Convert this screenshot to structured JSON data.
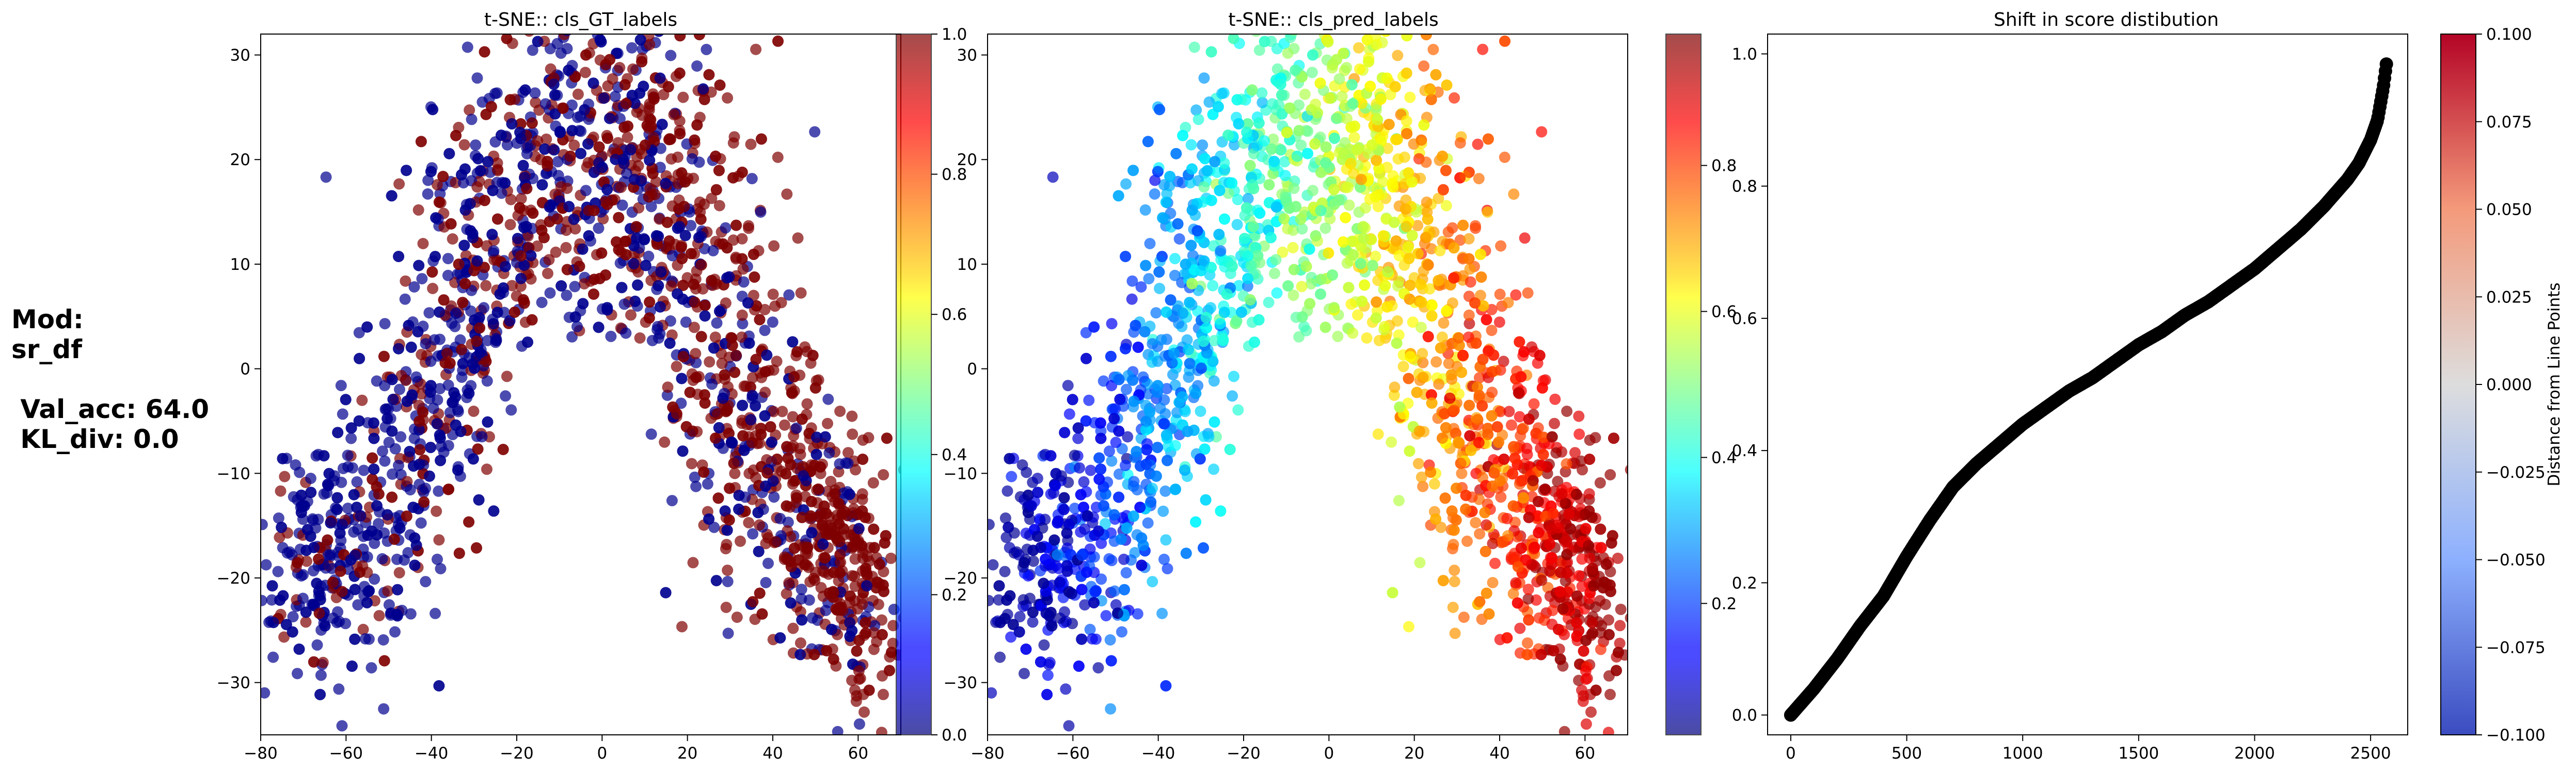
{
  "annotation": {
    "model_label": "Mod:",
    "model_name": "sr_df",
    "val_acc": "Val_acc: 64.0",
    "kl_div": "KL_div: 0.0"
  },
  "chart_data": [
    {
      "type": "scatter",
      "title": "t-SNE:: cls_GT_labels",
      "xlabel": "",
      "ylabel": "",
      "xlim": [
        -80,
        70
      ],
      "ylim": [
        -35,
        32
      ],
      "xticks": [
        "−80",
        "−60",
        "−40",
        "−20",
        "0",
        "20",
        "40",
        "60"
      ],
      "yticks": [
        "−30",
        "−20",
        "−10",
        "0",
        "10",
        "20",
        "30"
      ],
      "colormap": "jet",
      "alpha": 0.7,
      "colorbar": {
        "range": [
          0,
          1
        ],
        "ticks": [
          "0.0",
          "0.2",
          "0.4",
          "0.6",
          "0.8",
          "1.0"
        ]
      },
      "color_values": "binary ground-truth labels (0 = blue, 1 = dark red), mixed throughout the arch-shaped cloud",
      "approx_point_count": 2600
    },
    {
      "type": "scatter",
      "title": "t-SNE:: cls_pred_labels",
      "xlabel": "",
      "ylabel": "",
      "xlim": [
        -80,
        70
      ],
      "ylim": [
        -35,
        32
      ],
      "xticks": [
        "−80",
        "−60",
        "−40",
        "−20",
        "0",
        "20",
        "40",
        "60"
      ],
      "yticks": [
        "−30",
        "−20",
        "−10",
        "0",
        "10",
        "20",
        "30"
      ],
      "colormap": "jet",
      "alpha": 0.7,
      "colorbar": {
        "range": [
          0.02,
          0.98
        ],
        "ticks": [
          "0.2",
          "0.4",
          "0.6",
          "0.8"
        ]
      },
      "color_values": "predicted score rising smoothly from ~0.02 at x≈-75 to ~0.98 at x≈65",
      "approx_point_count": 2600
    },
    {
      "type": "scatter",
      "title": "Shift in score distibution",
      "xlabel": "",
      "ylabel": "",
      "xlim": [
        -100,
        2660
      ],
      "ylim": [
        -0.03,
        1.03
      ],
      "xticks": [
        "0",
        "500",
        "1000",
        "1500",
        "2000",
        "2500"
      ],
      "yticks": [
        "0.0",
        "0.2",
        "0.4",
        "0.6",
        "0.8",
        "1.0"
      ],
      "colormap": "coolwarm",
      "colorbar": {
        "label": "Distance from Line Points",
        "range": [
          -0.1,
          0.1
        ],
        "ticks": [
          "−0.100",
          "−0.075",
          "−0.050",
          "−0.025",
          "0.000",
          "0.025",
          "0.050",
          "0.075",
          "0.100"
        ]
      },
      "series": [
        {
          "x": [
            0,
            100,
            200,
            300,
            400,
            500,
            600,
            700,
            800,
            900,
            1000,
            1100,
            1200,
            1300,
            1400,
            1500,
            1600,
            1700,
            1800,
            1900,
            2000,
            2100,
            2200,
            2300,
            2400,
            2450,
            2500,
            2530,
            2555,
            2570
          ],
          "y": [
            0.0,
            0.04,
            0.085,
            0.135,
            0.18,
            0.24,
            0.295,
            0.345,
            0.38,
            0.41,
            0.44,
            0.465,
            0.49,
            0.51,
            0.535,
            0.56,
            0.58,
            0.605,
            0.625,
            0.65,
            0.675,
            0.705,
            0.735,
            0.77,
            0.81,
            0.835,
            0.87,
            0.9,
            0.95,
            0.99
          ]
        }
      ],
      "marker_color": "#000000"
    }
  ]
}
